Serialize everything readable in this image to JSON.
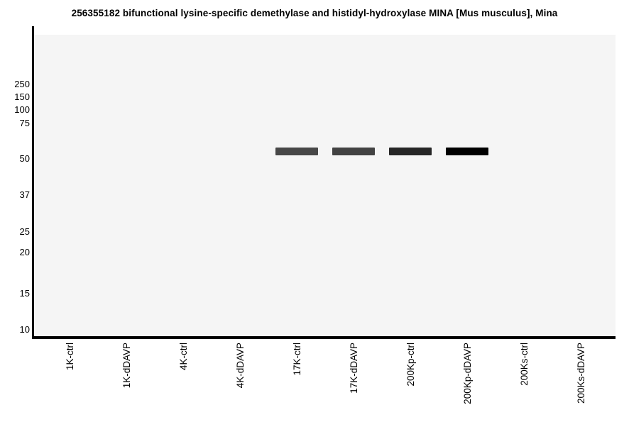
{
  "chart_data": {
    "type": "heatmap",
    "chart_kind": "virtual_western_blot",
    "title": "256355182 bifunctional lysine-specific demethylase and histidyl-hydroxylase MINA [Mus musculus], Mina",
    "xlabel": "",
    "ylabel": "",
    "y_axis": {
      "unit": "kDa molecular weight markers",
      "scale": "log-like gel migration",
      "tick_labels": [
        "250",
        "150",
        "100",
        "75",
        "50",
        "37",
        "25",
        "20",
        "15",
        "10"
      ]
    },
    "x_categories": [
      "1K-ctrl",
      "1K-dDAVP",
      "4K-ctrl",
      "4K-dDAVP",
      "17K-ctrl",
      "17K-dDAVP",
      "200Kp-ctrl",
      "200Kp-dDAVP",
      "200Ks-ctrl",
      "200Ks-dDAVP"
    ],
    "bands": [
      {
        "lane": "17K-ctrl",
        "approx_mw_kda": 55,
        "relative_intensity": 0.72,
        "color": "#474747"
      },
      {
        "lane": "17K-dDAVP",
        "approx_mw_kda": 55,
        "relative_intensity": 0.74,
        "color": "#424242"
      },
      {
        "lane": "200Kp-ctrl",
        "approx_mw_kda": 55,
        "relative_intensity": 0.85,
        "color": "#262626"
      },
      {
        "lane": "200Kp-dDAVP",
        "approx_mw_kda": 55,
        "relative_intensity": 1.0,
        "color": "#000000"
      }
    ],
    "lanes_without_bands": [
      "1K-ctrl",
      "1K-dDAVP",
      "4K-ctrl",
      "4K-dDAVP",
      "200Ks-ctrl",
      "200Ks-dDAVP"
    ],
    "legend": {
      "shown": false
    },
    "grid": {
      "shown": false
    },
    "colors": {
      "page_background": "#ffffff",
      "plot_background": "#f5f5f5",
      "axis": "#000000",
      "title_text": "#000000",
      "tick_text": "#000000"
    }
  }
}
